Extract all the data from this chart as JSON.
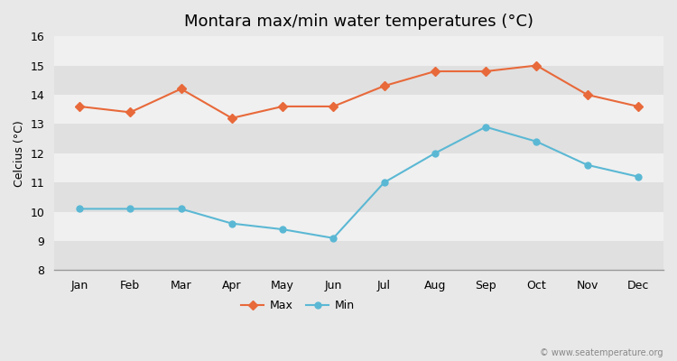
{
  "title": "Montara max/min water temperatures (°C)",
  "ylabel": "Celcius (°C)",
  "months": [
    "Jan",
    "Feb",
    "Mar",
    "Apr",
    "May",
    "Jun",
    "Jul",
    "Aug",
    "Sep",
    "Oct",
    "Nov",
    "Dec"
  ],
  "max_values": [
    13.6,
    13.4,
    14.2,
    13.2,
    13.6,
    13.6,
    14.3,
    14.8,
    14.8,
    15.0,
    14.0,
    13.6
  ],
  "min_values": [
    10.1,
    10.1,
    10.1,
    9.6,
    9.4,
    9.1,
    11.0,
    12.0,
    12.9,
    12.4,
    11.6,
    11.2
  ],
  "max_color": "#E8693A",
  "min_color": "#5BB8D4",
  "background_color": "#E8E8E8",
  "band_light": "#F0F0F0",
  "band_dark": "#E0E0E0",
  "ylim": [
    8,
    16
  ],
  "yticks": [
    8,
    9,
    10,
    11,
    12,
    13,
    14,
    15,
    16
  ],
  "watermark": "© www.seatemperature.org",
  "title_fontsize": 13,
  "label_fontsize": 9,
  "tick_fontsize": 9,
  "legend_fontsize": 9
}
